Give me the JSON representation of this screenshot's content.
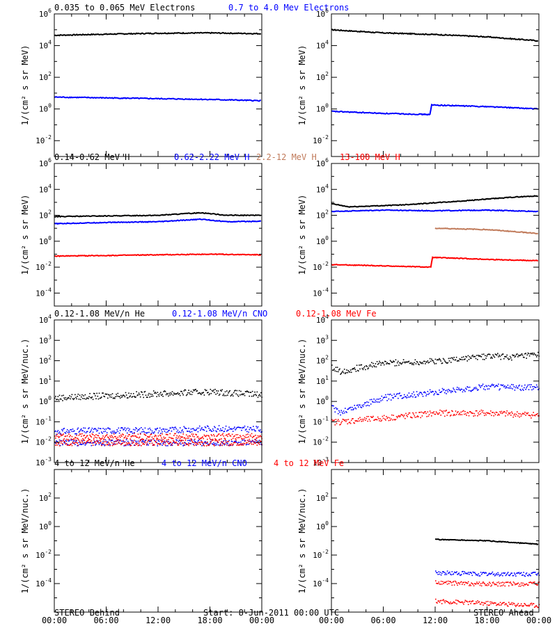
{
  "footer": {
    "left": "STEREO Behind",
    "center": "Start:  8-Jun-2011 00:00 UTC",
    "right": "STEREO Ahead"
  },
  "x_ticks": [
    "00:00",
    "06:00",
    "12:00",
    "18:00",
    "00:00"
  ],
  "colors": {
    "black": "#000000",
    "blue": "#0000ff",
    "tan": "#c07a5a",
    "red": "#ff0000"
  },
  "chart_data": [
    {
      "type": "line",
      "log_y": true,
      "ylabel": "1/(cm² s sr MeV)",
      "y_exp_range": [
        -3,
        6
      ],
      "y_tick_exps": [
        -2,
        0,
        2,
        4,
        6
      ],
      "xlabel": "",
      "x_hours": [
        0,
        24
      ],
      "legend": [
        {
          "text": "0.035 to 0.065 MeV Electrons",
          "color": "#000000"
        },
        {
          "text": "0.7 to 4.0 Mev Electrons",
          "color": "#0000ff"
        }
      ],
      "panels": [
        {
          "spacecraft": "STEREO Behind",
          "series": [
            {
              "color": "#000000",
              "style": "line",
              "points": [
                [
                  0,
                  4.65
                ],
                [
                  6,
                  4.72
                ],
                [
                  12,
                  4.78
                ],
                [
                  18,
                  4.8
                ],
                [
                  24,
                  4.75
                ]
              ]
            },
            {
              "color": "#0000ff",
              "style": "line",
              "points": [
                [
                  0,
                  0.75
                ],
                [
                  6,
                  0.7
                ],
                [
                  12,
                  0.65
                ],
                [
                  18,
                  0.6
                ],
                [
                  24,
                  0.52
                ]
              ]
            }
          ]
        },
        {
          "spacecraft": "STEREO Ahead",
          "series": [
            {
              "color": "#000000",
              "style": "line",
              "points": [
                [
                  0,
                  5.0
                ],
                [
                  6,
                  4.8
                ],
                [
                  12,
                  4.7
                ],
                [
                  18,
                  4.55
                ],
                [
                  24,
                  4.3
                ]
              ]
            },
            {
              "color": "#0000ff",
              "style": "line",
              "points": [
                [
                  0,
                  -0.15
                ],
                [
                  6,
                  -0.28
                ],
                [
                  11.4,
                  -0.35
                ],
                [
                  11.6,
                  0.25
                ],
                [
                  18,
                  0.15
                ],
                [
                  24,
                  0.0
                ]
              ]
            }
          ]
        }
      ]
    },
    {
      "type": "line",
      "log_y": true,
      "ylabel": "1/(cm² s sr MeV)",
      "y_exp_range": [
        -5,
        6
      ],
      "y_tick_exps": [
        -4,
        -2,
        0,
        2,
        4,
        6
      ],
      "xlabel": "",
      "x_hours": [
        0,
        24
      ],
      "legend": [
        {
          "text": "0.14-0.62 MeV H",
          "color": "#000000"
        },
        {
          "text": "0.62-2.22 MeV H",
          "color": "#0000ff"
        },
        {
          "text": "2.2-12 MeV H",
          "color": "#c07a5a"
        },
        {
          "text": "13-100 MeV H",
          "color": "#ff0000"
        }
      ],
      "panels": [
        {
          "spacecraft": "STEREO Behind",
          "series": [
            {
              "color": "#000000",
              "style": "line",
              "points": [
                [
                  0,
                  1.9
                ],
                [
                  6,
                  1.95
                ],
                [
                  12,
                  2.0
                ],
                [
                  17,
                  2.2
                ],
                [
                  20,
                  2.0
                ],
                [
                  24,
                  2.0
                ]
              ]
            },
            {
              "color": "#0000ff",
              "style": "line",
              "points": [
                [
                  0,
                  1.35
                ],
                [
                  6,
                  1.45
                ],
                [
                  12,
                  1.5
                ],
                [
                  17,
                  1.7
                ],
                [
                  20,
                  1.5
                ],
                [
                  24,
                  1.55
                ]
              ]
            },
            {
              "color": "#ff0000",
              "style": "line",
              "points": [
                [
                  0,
                  -1.15
                ],
                [
                  6,
                  -1.1
                ],
                [
                  12,
                  -1.05
                ],
                [
                  18,
                  -1.0
                ],
                [
                  24,
                  -1.05
                ]
              ]
            }
          ]
        },
        {
          "spacecraft": "STEREO Ahead",
          "series": [
            {
              "color": "#000000",
              "style": "line",
              "points": [
                [
                  0,
                  2.9
                ],
                [
                  2,
                  2.65
                ],
                [
                  8,
                  2.8
                ],
                [
                  14,
                  3.05
                ],
                [
                  21,
                  3.4
                ],
                [
                  24,
                  3.5
                ]
              ]
            },
            {
              "color": "#0000ff",
              "style": "line",
              "points": [
                [
                  0,
                  2.3
                ],
                [
                  6,
                  2.4
                ],
                [
                  12,
                  2.35
                ],
                [
                  18,
                  2.4
                ],
                [
                  24,
                  2.3
                ]
              ]
            },
            {
              "color": "#c07a5a",
              "style": "line",
              "points": [
                [
                  12,
                  1.0
                ],
                [
                  18,
                  0.9
                ],
                [
                  24,
                  0.6
                ]
              ]
            },
            {
              "color": "#ff0000",
              "style": "line",
              "points": [
                [
                  0,
                  -1.8
                ],
                [
                  6,
                  -1.9
                ],
                [
                  11.5,
                  -2.0
                ],
                [
                  11.7,
                  -1.25
                ],
                [
                  18,
                  -1.4
                ],
                [
                  24,
                  -1.5
                ]
              ]
            }
          ]
        }
      ]
    },
    {
      "type": "scatter",
      "log_y": true,
      "ylabel": "1/(cm² s sr MeV/nuc.)",
      "y_exp_range": [
        -3,
        4
      ],
      "y_tick_exps": [
        -3,
        -2,
        -1,
        0,
        1,
        2,
        3,
        4
      ],
      "xlabel": "",
      "x_hours": [
        0,
        24
      ],
      "legend": [
        {
          "text": "0.12-1.08 MeV/n He",
          "color": "#000000"
        },
        {
          "text": "0.12-1.08 MeV/n CNO",
          "color": "#0000ff"
        },
        {
          "text": "0.12-1.08 MeV Fe",
          "color": "#ff0000"
        }
      ],
      "panels": [
        {
          "spacecraft": "STEREO Behind",
          "series": [
            {
              "color": "#000000",
              "style": "dots",
              "points": [
                [
                  0,
                  0.2
                ],
                [
                  6,
                  0.3
                ],
                [
                  12,
                  0.4
                ],
                [
                  18,
                  0.5
                ],
                [
                  24,
                  0.35
                ]
              ]
            },
            {
              "color": "#0000ff",
              "style": "dots",
              "points": [
                [
                  0,
                  -1.45
                ],
                [
                  6,
                  -1.4
                ],
                [
                  12,
                  -1.4
                ],
                [
                  18,
                  -1.3
                ],
                [
                  24,
                  -1.35
                ]
              ]
            },
            {
              "color": "#0000ff",
              "style": "dots",
              "points": [
                [
                  0,
                  -2.0
                ],
                [
                  24,
                  -2.0
                ]
              ]
            },
            {
              "color": "#ff0000",
              "style": "dots",
              "points": [
                [
                  0,
                  -1.7
                ],
                [
                  24,
                  -1.7
                ]
              ]
            },
            {
              "color": "#ff0000",
              "style": "dots",
              "points": [
                [
                  0,
                  -2.0
                ],
                [
                  24,
                  -2.0
                ]
              ]
            }
          ]
        },
        {
          "spacecraft": "STEREO Ahead",
          "series": [
            {
              "color": "#000000",
              "style": "dots",
              "points": [
                [
                  0,
                  1.7
                ],
                [
                  1,
                  1.5
                ],
                [
                  6,
                  1.9
                ],
                [
                  12,
                  2.0
                ],
                [
                  18,
                  2.25
                ],
                [
                  21,
                  2.2
                ],
                [
                  24,
                  2.3
                ]
              ]
            },
            {
              "color": "#0000ff",
              "style": "dots",
              "points": [
                [
                  0,
                  -0.3
                ],
                [
                  1,
                  -0.5
                ],
                [
                  6,
                  0.2
                ],
                [
                  12,
                  0.5
                ],
                [
                  18,
                  0.75
                ],
                [
                  24,
                  0.7
                ]
              ]
            },
            {
              "color": "#ff0000",
              "style": "dots",
              "points": [
                [
                  0,
                  -1.0
                ],
                [
                  6,
                  -0.8
                ],
                [
                  12,
                  -0.55
                ],
                [
                  18,
                  -0.55
                ],
                [
                  24,
                  -0.65
                ]
              ]
            }
          ]
        }
      ]
    },
    {
      "type": "line",
      "log_y": true,
      "ylabel": "1/(cm² s sr MeV/nuc.)",
      "y_exp_range": [
        -6,
        4
      ],
      "y_tick_exps": [
        -4,
        -2,
        0,
        2
      ],
      "xlabel": "",
      "x_hours": [
        0,
        24
      ],
      "legend": [
        {
          "text": "4 to 12 MeV/n He",
          "color": "#000000"
        },
        {
          "text": "4 to 12 MeV/n CNO",
          "color": "#0000ff"
        },
        {
          "text": "4 to 12 MeV Fe",
          "color": "#ff0000"
        }
      ],
      "panels": [
        {
          "spacecraft": "STEREO Behind",
          "series": []
        },
        {
          "spacecraft": "STEREO Ahead",
          "series": [
            {
              "color": "#000000",
              "style": "line",
              "points": [
                [
                  12,
                  -0.9
                ],
                [
                  18,
                  -1.0
                ],
                [
                  24,
                  -1.25
                ]
              ]
            },
            {
              "color": "#0000ff",
              "style": "dots",
              "points": [
                [
                  12,
                  -3.2
                ],
                [
                  18,
                  -3.3
                ],
                [
                  24,
                  -3.3
                ]
              ]
            },
            {
              "color": "#ff0000",
              "style": "dots",
              "points": [
                [
                  12,
                  -3.9
                ],
                [
                  18,
                  -4.0
                ],
                [
                  24,
                  -4.0
                ]
              ]
            },
            {
              "color": "#ff0000",
              "style": "dots",
              "points": [
                [
                  12,
                  -5.2
                ],
                [
                  24,
                  -5.5
                ]
              ]
            }
          ]
        }
      ]
    }
  ]
}
